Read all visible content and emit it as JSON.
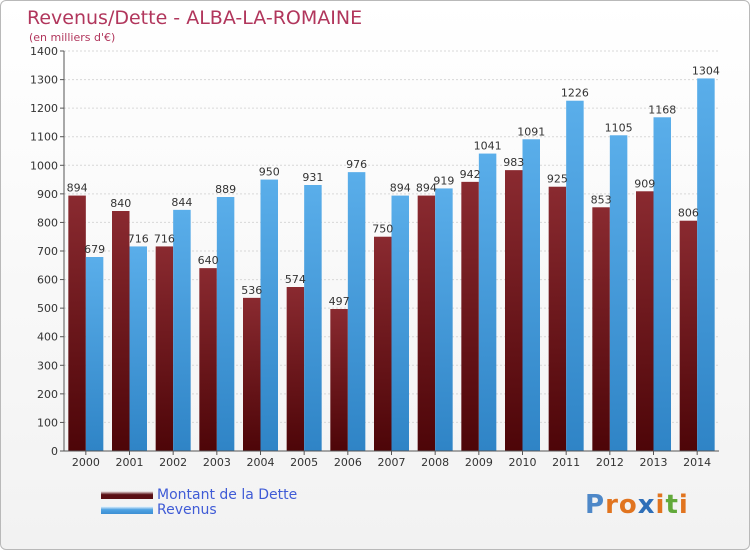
{
  "title": "Revenus/Dette - ALBA-LA-ROMAINE",
  "subtitle": "(en milliers d'€)",
  "logo": {
    "letters": [
      "P",
      "r",
      "o",
      "x",
      "i",
      "t",
      "i"
    ],
    "colors": [
      "#4e88c8",
      "#e1741f",
      "#e1741f",
      "#2f6fb8",
      "#e1741f",
      "#62a93a",
      "#e1741f"
    ]
  },
  "chart_data": {
    "type": "bar",
    "categories": [
      "2000",
      "2001",
      "2002",
      "2003",
      "2004",
      "2005",
      "2006",
      "2007",
      "2008",
      "2009",
      "2010",
      "2011",
      "2012",
      "2013",
      "2014"
    ],
    "series": [
      {
        "name": "Montant de la Dette",
        "color": "#7a1a1f",
        "values": [
          894,
          840,
          716,
          640,
          536,
          574,
          497,
          750,
          894,
          942,
          983,
          925,
          853,
          909,
          806
        ]
      },
      {
        "name": "Revenus",
        "color": "#4fa3e3",
        "values": [
          679,
          716,
          844,
          889,
          950,
          931,
          976,
          894,
          919,
          1041,
          1091,
          1226,
          1105,
          1168,
          1304
        ]
      }
    ],
    "yticks": [
      "0",
      "100",
      "200",
      "300",
      "400",
      "500",
      "600",
      "700",
      "800",
      "900",
      "1000",
      "1100",
      "1200",
      "1300",
      "1400"
    ],
    "ylim": [
      0,
      1400
    ],
    "grid": true,
    "legend": "bottom-left"
  }
}
